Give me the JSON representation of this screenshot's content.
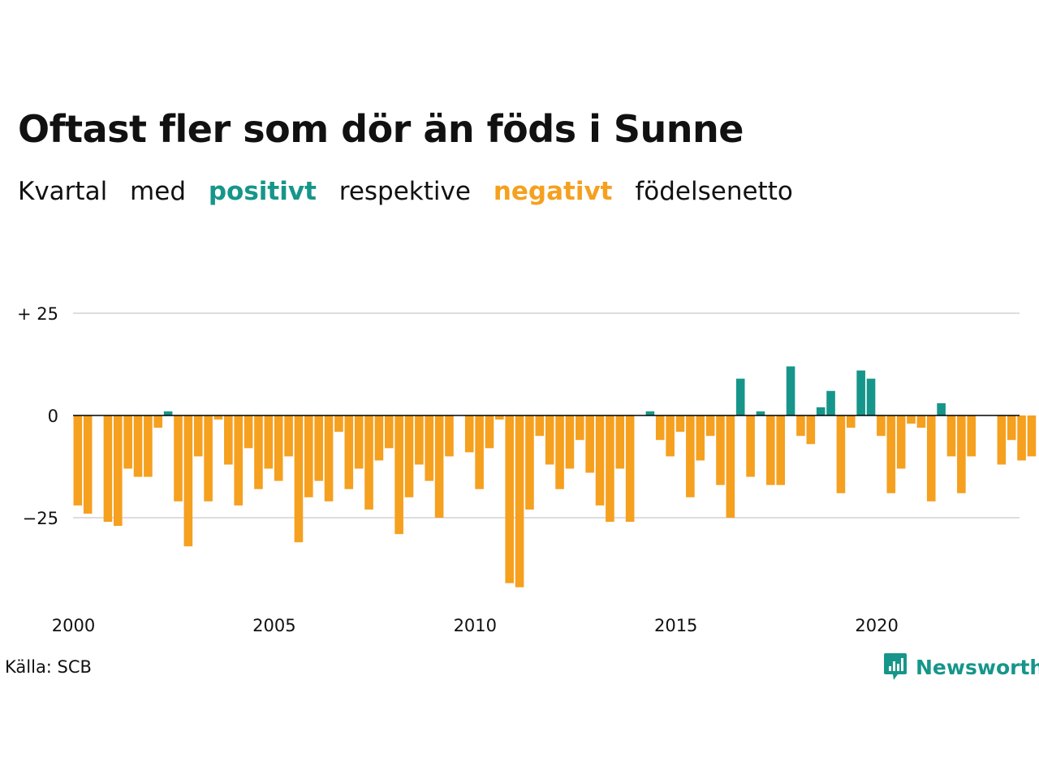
{
  "title": "Oftast fler som dör än föds i Sunne",
  "subtitle": {
    "part1": "Kvartal",
    "part2": "med",
    "positive_word": "positivt",
    "part3": "respektive",
    "negative_word": "negativt",
    "part4": "födelsenetto"
  },
  "source": "Källa: SCB",
  "brand": {
    "name": "Newsworthy",
    "icon": "newsworthy-chart-icon"
  },
  "colors": {
    "positive": "#16968a",
    "negative": "#f5a01f",
    "grid": "#dddddd",
    "axis": "#000000",
    "text": "#111111"
  },
  "chart_data": {
    "type": "bar",
    "title": "Oftast fler som dör än föds i Sunne",
    "xlabel": "",
    "ylabel": "",
    "ylim": [
      -42,
      25
    ],
    "yticks": [
      25,
      0,
      -25
    ],
    "ytick_labels": [
      "+ 25",
      "0",
      "−25"
    ],
    "xtick_years": [
      2000,
      2005,
      2010,
      2015,
      2020
    ],
    "xtick_labels": [
      "2000",
      "2005",
      "2010",
      "2015",
      "2020"
    ],
    "start": "2000 Q1",
    "frequency": "quarterly",
    "grid": true,
    "values": [
      -22,
      -24,
      null,
      -26,
      -27,
      -13,
      -15,
      -15,
      -3,
      1,
      -21,
      -32,
      -10,
      -21,
      -1,
      -12,
      -22,
      -8,
      -18,
      -13,
      -16,
      -10,
      -31,
      -20,
      -16,
      -21,
      -4,
      -18,
      -13,
      -23,
      -11,
      -8,
      -29,
      -20,
      -12,
      -16,
      -25,
      -10,
      null,
      -9,
      -18,
      -8,
      -1,
      -41,
      -42,
      -23,
      -5,
      -12,
      -18,
      -13,
      -6,
      -14,
      -22,
      -26,
      -13,
      -26,
      null,
      1,
      -6,
      -10,
      -4,
      -20,
      -11,
      -5,
      -17,
      -25,
      9,
      -15,
      1,
      -17,
      -17,
      12,
      -5,
      -7,
      2,
      6,
      -19,
      -3,
      11,
      9,
      -5,
      -19,
      -13,
      -2,
      -3,
      -21,
      3,
      -10,
      -19,
      -10,
      null,
      null,
      -12,
      -6,
      -11,
      -10
    ]
  }
}
